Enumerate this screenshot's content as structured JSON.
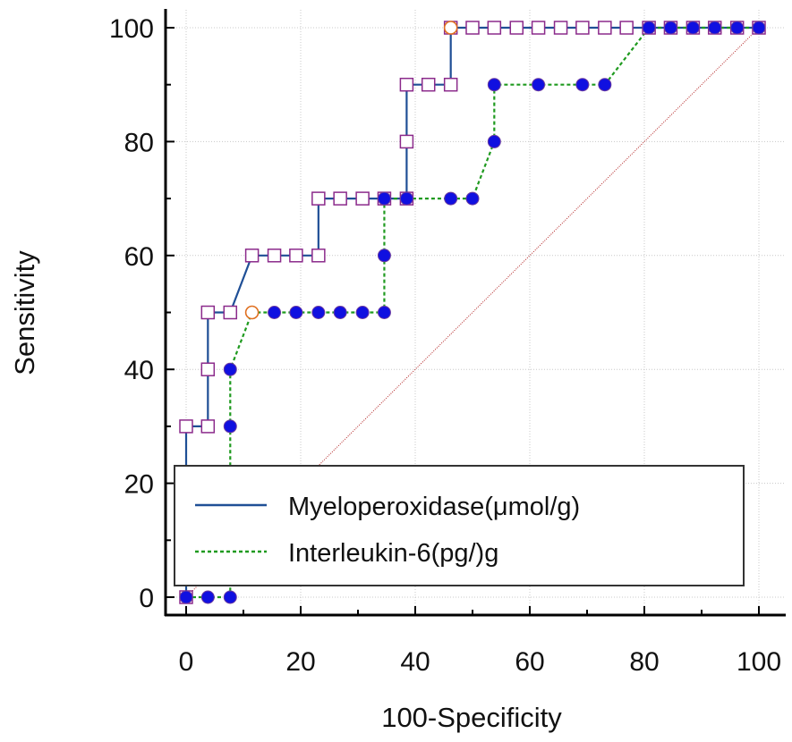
{
  "chart_data": {
    "type": "line",
    "title": "",
    "xlabel": "100-Specificity",
    "ylabel": "Sensitivity",
    "xlim": [
      0,
      100
    ],
    "ylim": [
      0,
      100
    ],
    "xticks": [
      "0",
      "20",
      "40",
      "60",
      "80",
      "100"
    ],
    "yticks": [
      "0",
      "20",
      "40",
      "60",
      "80",
      "100"
    ],
    "grid": true,
    "legend_position": "bottom-left",
    "reference_line": {
      "from": [
        0,
        0
      ],
      "to": [
        100,
        100
      ],
      "color": "#b22222"
    },
    "series": [
      {
        "name": "Myeloperoxidase(μmol/g)",
        "line_style": "solid",
        "color": "#1f4f96",
        "marker": "open-square",
        "marker_color": "#8b2a8b",
        "x": [
          0,
          0,
          0,
          3.8,
          3.8,
          3.8,
          7.7,
          11.5,
          15.4,
          19.2,
          23.1,
          23.1,
          26.9,
          30.8,
          34.6,
          38.5,
          38.5,
          38.5,
          42.3,
          46.2,
          46.2,
          50,
          53.8,
          57.7,
          61.5,
          65.4,
          69.2,
          73.1,
          76.9,
          80.8,
          84.6,
          88.5,
          92.3,
          96.2,
          100
        ],
        "y": [
          0,
          20,
          30,
          30,
          40,
          50,
          50,
          60,
          60,
          60,
          60,
          70,
          70,
          70,
          70,
          70,
          80,
          90,
          90,
          90,
          100,
          100,
          100,
          100,
          100,
          100,
          100,
          100,
          100,
          100,
          100,
          100,
          100,
          100,
          100
        ]
      },
      {
        "name": "Interleukin-6(pg/)g",
        "line_style": "dashed",
        "color": "#1f9a1f",
        "marker": "filled-circle",
        "marker_color": "#1010e0",
        "x": [
          0,
          3.8,
          7.7,
          7.7,
          7.7,
          7.7,
          11.5,
          15.4,
          19.2,
          23.1,
          26.9,
          30.8,
          34.6,
          34.6,
          34.6,
          38.5,
          46.2,
          50,
          53.8,
          53.8,
          61.5,
          69.2,
          73.1,
          80.8,
          84.6,
          88.5,
          92.3,
          96.2,
          100
        ],
        "y": [
          0,
          0,
          0,
          20,
          30,
          40,
          50,
          50,
          50,
          50,
          50,
          50,
          50,
          60,
          70,
          70,
          70,
          70,
          80,
          90,
          90,
          90,
          90,
          100,
          100,
          100,
          100,
          100,
          100
        ]
      }
    ],
    "highlight_points": [
      {
        "series": "Interleukin-6(pg/)g",
        "x": 11.5,
        "y": 50,
        "marker": "open-circle",
        "color": "#e07020"
      },
      {
        "series": "Myeloperoxidase(μmol/g)",
        "x": 46.2,
        "y": 100,
        "marker": "open-circle",
        "color": "#e07020"
      }
    ]
  }
}
